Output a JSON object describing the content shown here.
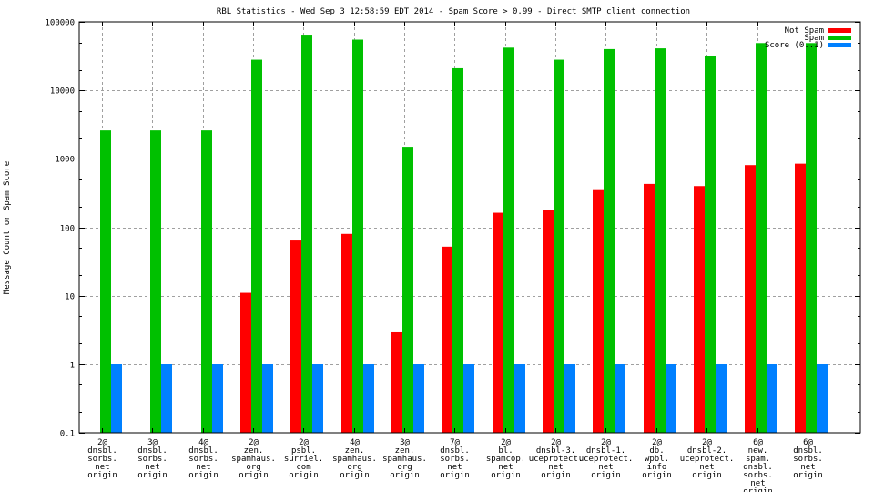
{
  "chart_data": {
    "type": "bar",
    "title": "RBL Statistics - Wed Sep  3 12:58:59 EDT 2014 - Spam Score > 0.99 - Direct SMTP client connection",
    "xlabel": "",
    "ylabel": "Message Count or Spam Score",
    "yscale": "log",
    "ylim": [
      0.1,
      100000
    ],
    "yticks": [
      "0.1",
      "1",
      "10",
      "100",
      "1000",
      "10000",
      "100000"
    ],
    "ytick_values": [
      0.1,
      1,
      10,
      100,
      1000,
      10000,
      100000
    ],
    "grid": true,
    "legend_position": "top-right",
    "categories": [
      [
        "2@",
        "dnsbl.",
        "sorbs.",
        "net",
        "origin"
      ],
      [
        "3@",
        "dnsbl.",
        "sorbs.",
        "net",
        "origin"
      ],
      [
        "4@",
        "dnsbl.",
        "sorbs.",
        "net",
        "origin"
      ],
      [
        "2@",
        "zen.",
        "spamhaus.",
        "org",
        "origin"
      ],
      [
        "2@",
        "psbl.",
        "surriel.",
        "com",
        "origin"
      ],
      [
        "4@",
        "zen.",
        "spamhaus.",
        "org",
        "origin"
      ],
      [
        "3@",
        "zen.",
        "spamhaus.",
        "org",
        "origin"
      ],
      [
        "7@",
        "dnsbl.",
        "sorbs.",
        "net",
        "origin"
      ],
      [
        "2@",
        "bl.",
        "spamcop.",
        "net",
        "origin"
      ],
      [
        "2@",
        "dnsbl-3.",
        "uceprotect.",
        "net",
        "origin"
      ],
      [
        "2@",
        "dnsbl-1.",
        "uceprotect.",
        "net",
        "origin"
      ],
      [
        "2@",
        "db.",
        "wpbl.",
        "info",
        "origin"
      ],
      [
        "2@",
        "dnsbl-2.",
        "uceprotect.",
        "net",
        "origin"
      ],
      [
        "6@",
        "new.",
        "spam.",
        "dnsbl.",
        "sorbs.",
        "net",
        "origin"
      ],
      [
        "6@",
        "dnsbl.",
        "sorbs.",
        "net",
        "origin"
      ]
    ],
    "series": [
      {
        "name": "Not Spam",
        "color": "#ff0000",
        "values": [
          null,
          null,
          null,
          11,
          66,
          80,
          3,
          52,
          163,
          180,
          360,
          430,
          400,
          810,
          850
        ]
      },
      {
        "name": "Spam",
        "color": "#00c000",
        "values": [
          2600,
          2600,
          2600,
          28000,
          65000,
          55000,
          1500,
          21000,
          42000,
          28000,
          40000,
          41000,
          32000,
          49000,
          49000
        ]
      },
      {
        "name": "Score (0..1)",
        "color": "#0080ff",
        "values": [
          1,
          1,
          1,
          1,
          1,
          1,
          1,
          1,
          1,
          1,
          1,
          1,
          1,
          1,
          1
        ]
      }
    ]
  }
}
